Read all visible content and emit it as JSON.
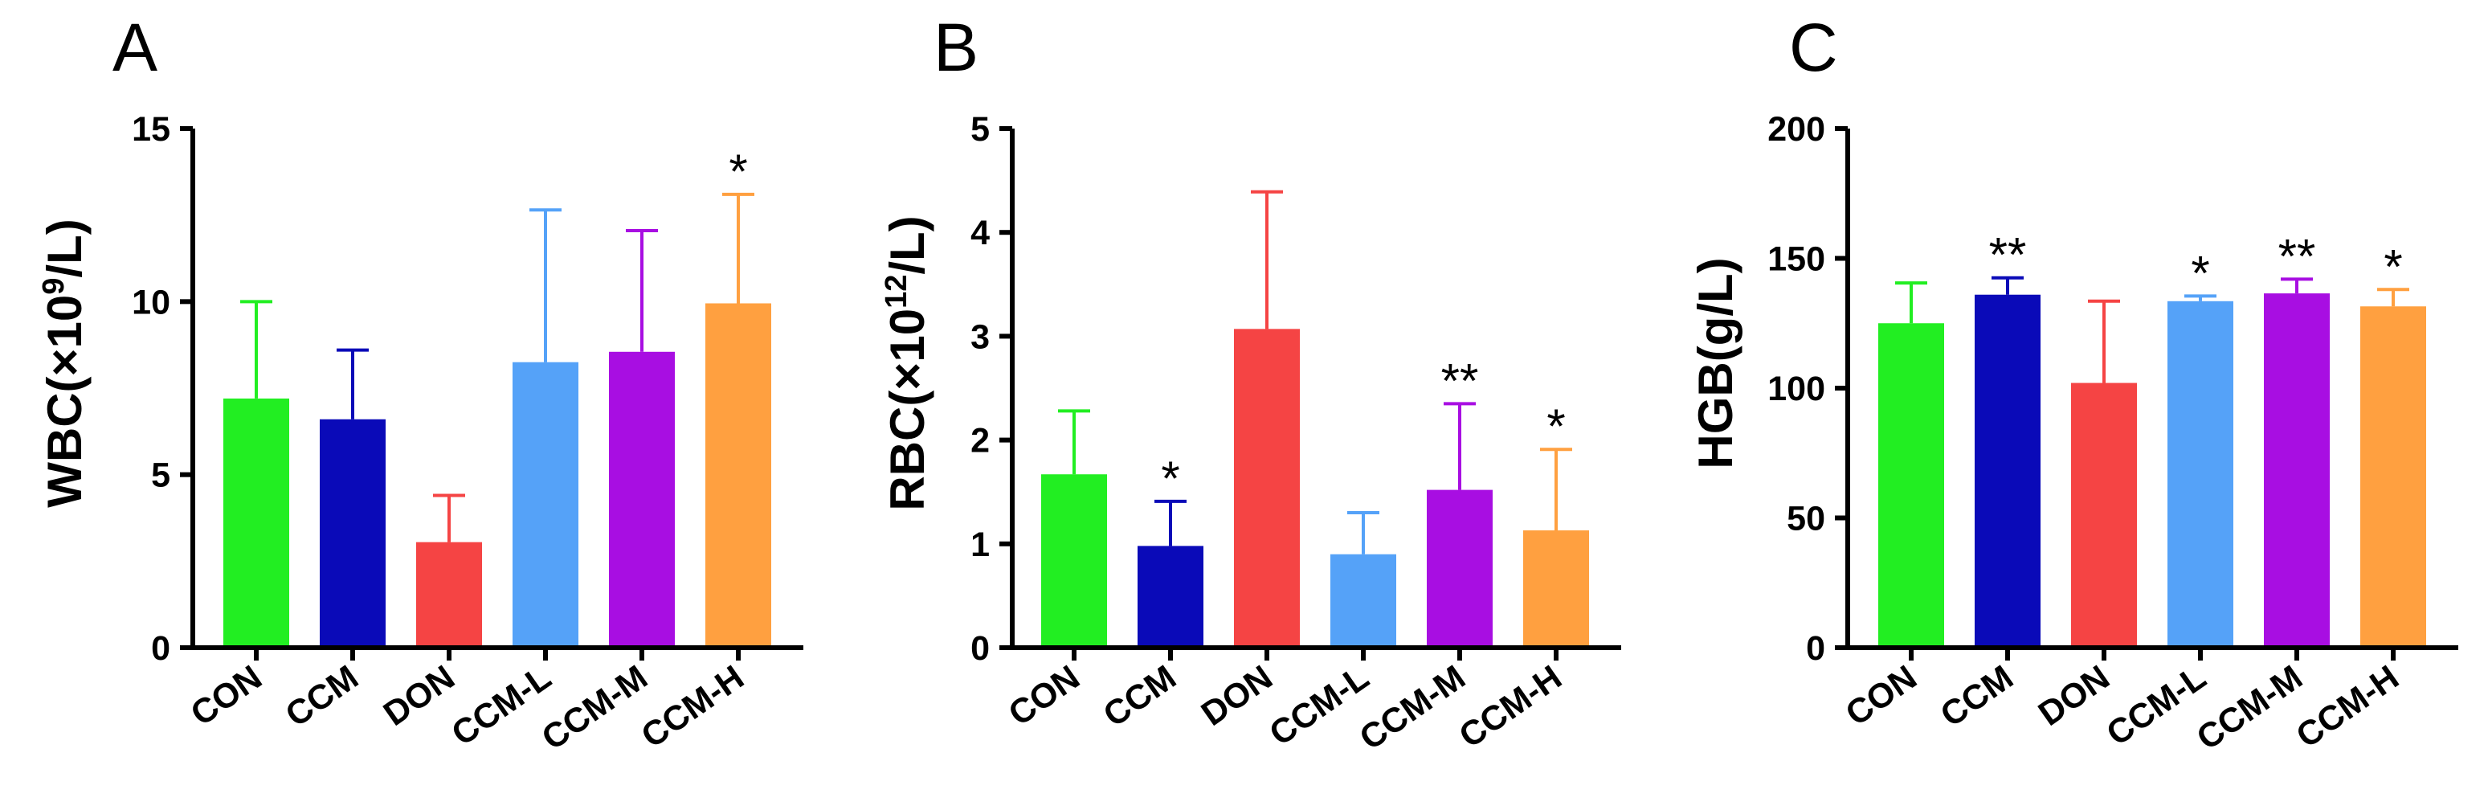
{
  "figure": {
    "background": "#ffffff"
  },
  "chart_data": [
    {
      "panel": "A",
      "type": "bar",
      "categories": [
        "CON",
        "CCM",
        "DON",
        "CCM-L",
        "CCM-M",
        "CCM-H"
      ],
      "values": [
        7.2,
        6.6,
        3.05,
        8.25,
        8.55,
        9.95
      ],
      "errors": [
        2.8,
        2.0,
        1.35,
        4.4,
        3.5,
        3.15
      ],
      "significance": [
        "",
        "",
        "",
        "",
        "",
        "*"
      ],
      "colors": [
        "#22ee22",
        "#0a0ab8",
        "#f54444",
        "#55a2f8",
        "#a80ee2",
        "#ffa040"
      ],
      "ylabel_main": "WBC(×10",
      "ylabel_sup": "9",
      "ylabel_tail": "/L)",
      "ylim": [
        0,
        15
      ],
      "yticks": [
        0,
        5,
        10,
        15
      ],
      "ytick_labels": [
        "0",
        "5",
        "10",
        "15"
      ]
    },
    {
      "panel": "B",
      "type": "bar",
      "categories": [
        "CON",
        "CCM",
        "DON",
        "CCM-L",
        "CCM-M",
        "CCM-H"
      ],
      "values": [
        1.67,
        0.98,
        3.07,
        0.9,
        1.52,
        1.13
      ],
      "errors": [
        0.61,
        0.43,
        1.32,
        0.4,
        0.83,
        0.78
      ],
      "significance": [
        "",
        "*",
        "",
        "",
        "**",
        "*"
      ],
      "colors": [
        "#22ee22",
        "#0a0ab8",
        "#f54444",
        "#55a2f8",
        "#a80ee2",
        "#ffa040"
      ],
      "ylabel_main": "RBC(×10",
      "ylabel_sup": "12",
      "ylabel_tail": "/L)",
      "ylim": [
        0,
        5
      ],
      "yticks": [
        0,
        1,
        2,
        3,
        4,
        5
      ],
      "ytick_labels": [
        "0",
        "1",
        "2",
        "3",
        "4",
        "5"
      ]
    },
    {
      "panel": "C",
      "type": "bar",
      "categories": [
        "CON",
        "CCM",
        "DON",
        "CCM-L",
        "CCM-M",
        "CCM-H"
      ],
      "values": [
        125,
        136,
        102,
        133.5,
        136.5,
        131.5
      ],
      "errors": [
        15.5,
        6.5,
        31.5,
        2.0,
        5.5,
        6.5
      ],
      "significance": [
        "",
        "**",
        "",
        "*",
        "**",
        "*"
      ],
      "colors": [
        "#22ee22",
        "#0a0ab8",
        "#f54444",
        "#55a2f8",
        "#a80ee2",
        "#ffa040"
      ],
      "ylabel_main": "HGB(g/L)",
      "ylabel_sup": "",
      "ylabel_tail": "",
      "ylim": [
        0,
        200
      ],
      "yticks": [
        0,
        50,
        100,
        150,
        200
      ],
      "ytick_labels": [
        "0",
        "50",
        "100",
        "150",
        "200"
      ]
    }
  ]
}
